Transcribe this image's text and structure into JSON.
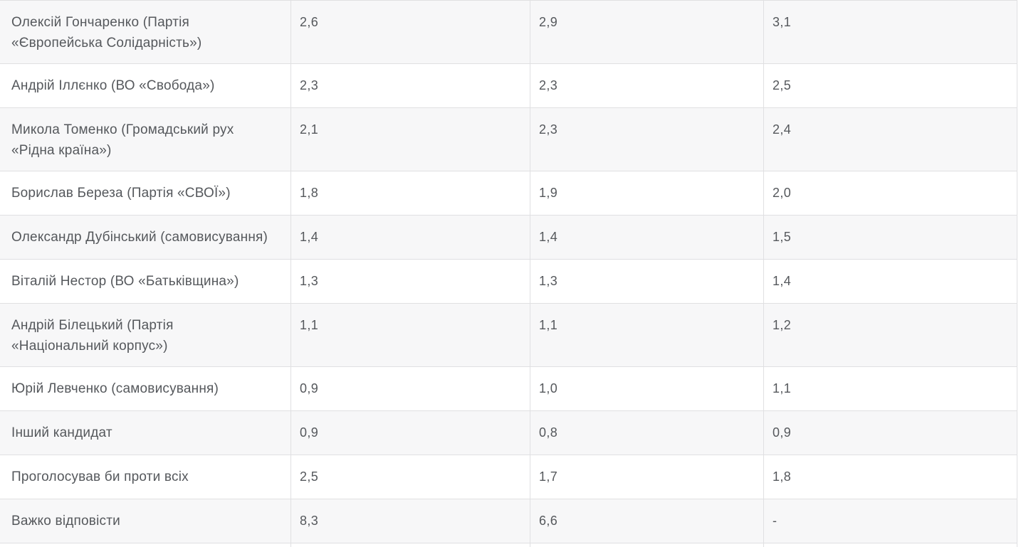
{
  "chart_data": {
    "type": "table",
    "description": "Poll results table fragment, candidate ratings in percent across three result columns",
    "rows": [
      {
        "candidate": "Олексій Гончаренко (Партія\n«Європейська Солідарність»)",
        "values": [
          "2,6",
          "2,9",
          "3,1"
        ]
      },
      {
        "candidate": "Андрій Іллєнко (ВО «Свобода»)",
        "values": [
          "2,3",
          "2,3",
          "2,5"
        ]
      },
      {
        "candidate": "Микола Томенко (Громадський рух\n«Рідна країна»)",
        "values": [
          "2,1",
          "2,3",
          "2,4"
        ]
      },
      {
        "candidate": "Борислав Береза (Партія «СВОЇ»)",
        "values": [
          "1,8",
          "1,9",
          "2,0"
        ]
      },
      {
        "candidate": "Олександр Дубінський (самовисування)",
        "values": [
          "1,4",
          "1,4",
          "1,5"
        ]
      },
      {
        "candidate": "Віталій Нестор (ВО «Батьківщина»)",
        "values": [
          "1,3",
          "1,3",
          "1,4"
        ]
      },
      {
        "candidate": "Андрій Білецький (Партія\n«Національний корпус»)",
        "values": [
          "1,1",
          "1,1",
          "1,2"
        ]
      },
      {
        "candidate": "Юрій Левченко (самовисування)",
        "values": [
          "0,9",
          "1,0",
          "1,1"
        ]
      },
      {
        "candidate": "Інший кандидат",
        "values": [
          "0,9",
          "0,8",
          "0,9"
        ]
      },
      {
        "candidate": "Проголосував би проти всіх",
        "values": [
          "2,5",
          "1,7",
          "1,8"
        ]
      },
      {
        "candidate": "Важко відповісти",
        "values": [
          "8,3",
          "6,6",
          "-"
        ]
      }
    ]
  },
  "colors": {
    "row_alt_background": "#f7f7f8",
    "row_background": "#ffffff",
    "border": "#e0e0e2",
    "text": "#55585c"
  }
}
